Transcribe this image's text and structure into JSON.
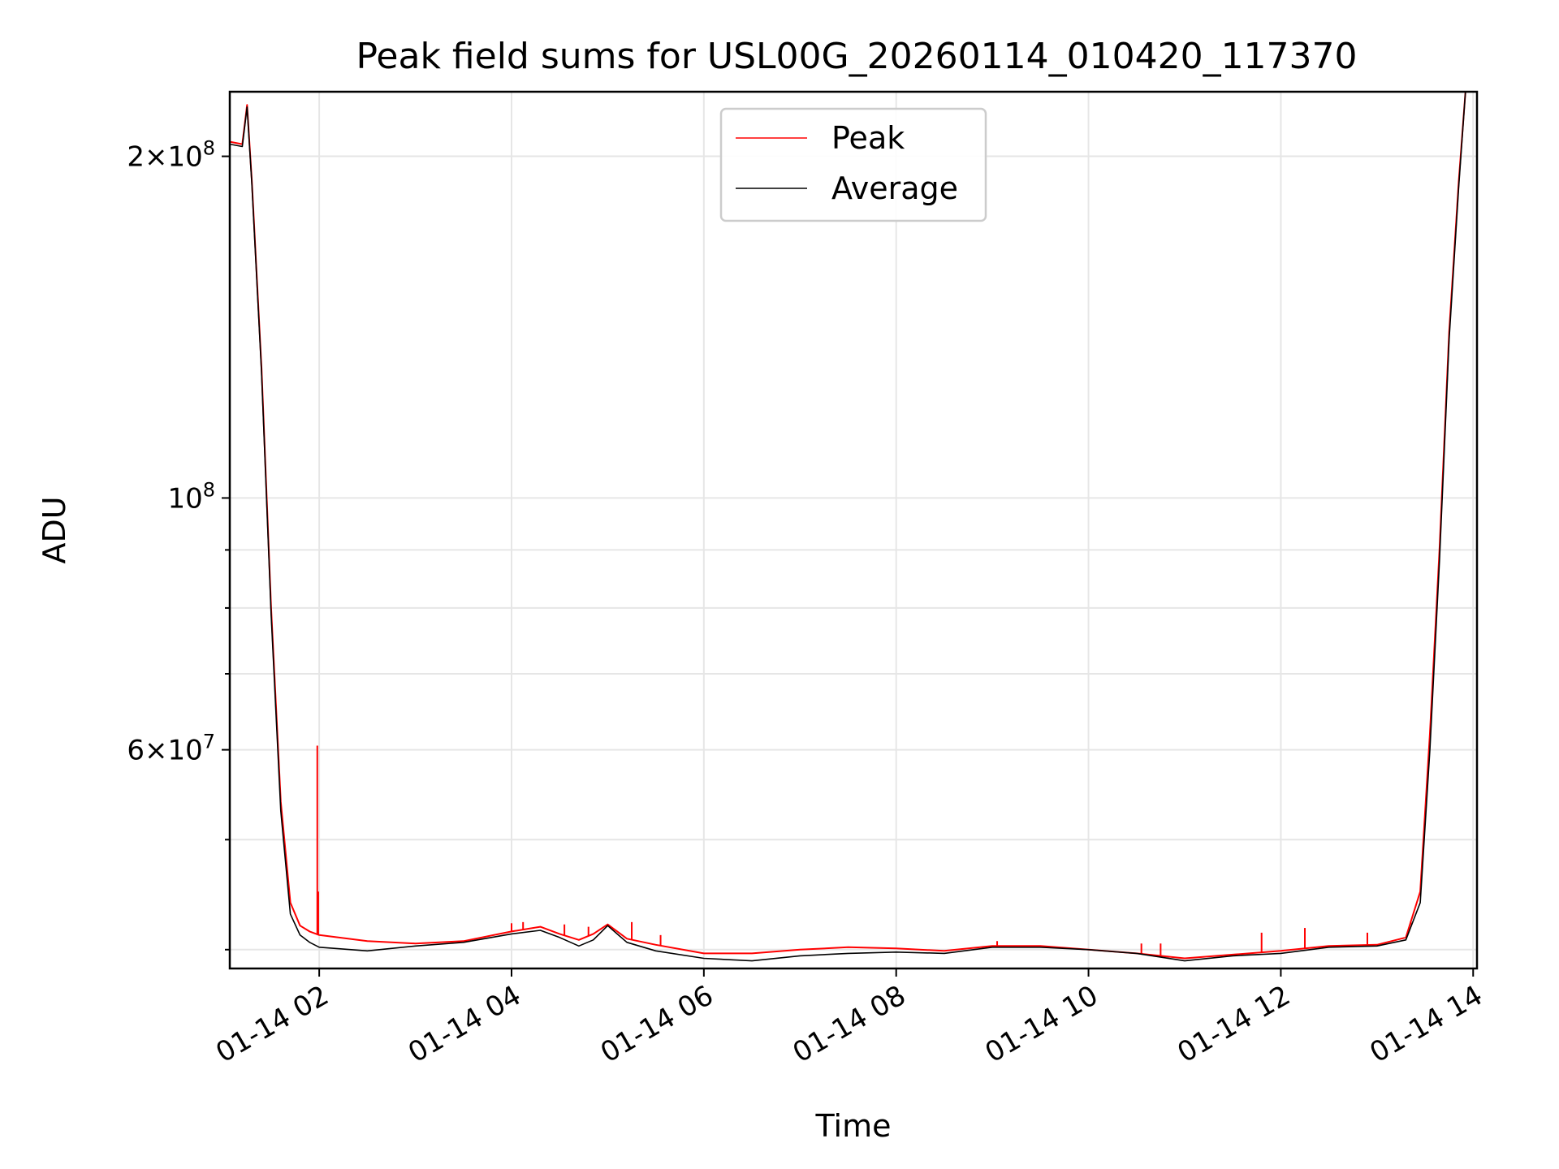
{
  "chart_data": {
    "type": "line",
    "title": "Peak field sums for USL00G_20260114_010420_117370",
    "xlabel": "Time",
    "ylabel": "ADU",
    "yscale": "log",
    "xlim_hours": [
      1.07,
      14.04
    ],
    "ylim": [
      38500000,
      228000000
    ],
    "grid": true,
    "legend_position": "top-center",
    "x_ticks": [
      {
        "hour": 2,
        "label": "01-14 02"
      },
      {
        "hour": 4,
        "label": "01-14 04"
      },
      {
        "hour": 6,
        "label": "01-14 06"
      },
      {
        "hour": 8,
        "label": "01-14 08"
      },
      {
        "hour": 10,
        "label": "01-14 10"
      },
      {
        "hour": 12,
        "label": "01-14 12"
      },
      {
        "hour": 14,
        "label": "01-14 14"
      }
    ],
    "y_major_ticks": [
      {
        "value": 60000000,
        "mantissa": "6",
        "base": "10",
        "exp": "7"
      },
      {
        "value": 100000000,
        "mantissa": "",
        "base": "10",
        "exp": "8"
      },
      {
        "value": 200000000,
        "mantissa": "2",
        "base": "10",
        "exp": "8"
      }
    ],
    "y_minor_ticks": [
      40000000,
      50000000,
      70000000,
      80000000,
      90000000
    ],
    "series": [
      {
        "name": "Peak",
        "color": "#ff0000",
        "x_hours": [
          1.07,
          1.2,
          1.25,
          1.3,
          1.4,
          1.5,
          1.6,
          1.7,
          1.8,
          1.9,
          2.0,
          2.5,
          3.0,
          3.5,
          4.0,
          4.3,
          4.5,
          4.7,
          4.85,
          5.0,
          5.2,
          5.5,
          6.0,
          6.5,
          7.0,
          7.5,
          8.0,
          8.5,
          9.0,
          9.5,
          10.0,
          10.5,
          11.0,
          11.5,
          12.0,
          12.5,
          13.0,
          13.3,
          13.45,
          13.55,
          13.65,
          13.75,
          13.85,
          13.92,
          13.98,
          14.04
        ],
        "values": [
          206000000,
          205000000,
          222000000,
          190000000,
          130000000,
          80000000,
          54000000,
          44000000,
          42000000,
          41500000,
          41200000,
          40700000,
          40500000,
          40700000,
          41500000,
          41900000,
          41300000,
          40800000,
          41300000,
          42100000,
          40900000,
          40400000,
          39700000,
          39700000,
          40000000,
          40200000,
          40100000,
          39900000,
          40300000,
          40300000,
          40000000,
          39700000,
          39300000,
          39600000,
          39900000,
          40300000,
          40400000,
          41000000,
          45000000,
          62000000,
          90000000,
          140000000,
          190000000,
          228000000,
          228000000,
          228000000
        ],
        "spikes": [
          {
            "hour": 1.98,
            "value": 60500000
          },
          {
            "hour": 1.99,
            "value": 45000000
          },
          {
            "hour": 4.0,
            "value": 42200000
          },
          {
            "hour": 4.12,
            "value": 42300000
          },
          {
            "hour": 4.55,
            "value": 42100000
          },
          {
            "hour": 4.8,
            "value": 41900000
          },
          {
            "hour": 5.25,
            "value": 42300000
          },
          {
            "hour": 5.55,
            "value": 41200000
          },
          {
            "hour": 9.05,
            "value": 40700000
          },
          {
            "hour": 10.55,
            "value": 40500000
          },
          {
            "hour": 10.75,
            "value": 40500000
          },
          {
            "hour": 11.8,
            "value": 41400000
          },
          {
            "hour": 12.25,
            "value": 41800000
          },
          {
            "hour": 12.9,
            "value": 41400000
          },
          {
            "hour": 13.35,
            "value": 42100000
          }
        ]
      },
      {
        "name": "Average",
        "color": "#000000",
        "x_hours": [
          1.07,
          1.2,
          1.25,
          1.3,
          1.4,
          1.5,
          1.6,
          1.7,
          1.8,
          1.9,
          2.0,
          2.5,
          3.0,
          3.5,
          4.0,
          4.3,
          4.5,
          4.7,
          4.85,
          5.0,
          5.2,
          5.5,
          6.0,
          6.5,
          7.0,
          7.5,
          8.0,
          8.5,
          9.0,
          9.5,
          10.0,
          10.5,
          11.0,
          11.5,
          12.0,
          12.5,
          13.0,
          13.3,
          13.45,
          13.55,
          13.65,
          13.75,
          13.85,
          13.92,
          13.98,
          14.04
        ],
        "values": [
          205000000,
          204000000,
          221000000,
          189000000,
          129000000,
          79000000,
          53000000,
          43000000,
          41200000,
          40600000,
          40200000,
          39900000,
          40300000,
          40600000,
          41300000,
          41600000,
          41000000,
          40300000,
          40800000,
          42000000,
          40600000,
          39900000,
          39300000,
          39100000,
          39500000,
          39700000,
          39800000,
          39700000,
          40200000,
          40200000,
          40000000,
          39700000,
          39100000,
          39500000,
          39700000,
          40200000,
          40300000,
          40800000,
          44000000,
          60000000,
          88000000,
          138000000,
          188000000,
          228000000,
          228000000,
          228000000
        ]
      }
    ]
  }
}
